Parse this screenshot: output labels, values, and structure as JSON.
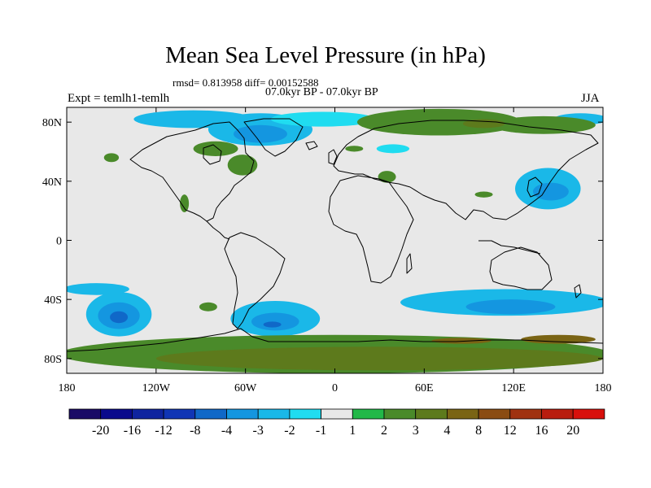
{
  "chart_data": {
    "type": "heatmap",
    "title": "Mean Sea Level Pressure (in hPa)",
    "stats_line": "rmsd= 0.813958 diff= 0.00152588",
    "period_line": "07.0kyr BP - 07.0kyr BP",
    "left_label": "Expt = temlh1-temlh",
    "right_label": "JJA",
    "projection": "cylindrical equidistant, global",
    "x_ticks": [
      {
        "value": -180,
        "label": "180"
      },
      {
        "value": -120,
        "label": "120W"
      },
      {
        "value": -60,
        "label": "60W"
      },
      {
        "value": 0,
        "label": "0"
      },
      {
        "value": 60,
        "label": "60E"
      },
      {
        "value": 120,
        "label": "120E"
      },
      {
        "value": 180,
        "label": "180"
      }
    ],
    "y_ticks": [
      {
        "value": 80,
        "label": "80N"
      },
      {
        "value": 40,
        "label": "40N"
      },
      {
        "value": 0,
        "label": "0"
      },
      {
        "value": -40,
        "label": "40S"
      },
      {
        "value": -80,
        "label": "80S"
      }
    ],
    "xlim": [
      -180,
      180
    ],
    "ylim": [
      -90,
      90
    ],
    "background_color": "#e8e8e8",
    "colorbar": {
      "colors": [
        "#1a0b66",
        "#0a0a8c",
        "#0f249f",
        "#1035b5",
        "#1068c8",
        "#1496e0",
        "#1ab8e8",
        "#20dcf0",
        "#e8e8e8",
        "#22b848",
        "#4a8a2a",
        "#5d7a1c",
        "#7a6414",
        "#8a4c12",
        "#a03210",
        "#b81c0e",
        "#d8100c"
      ],
      "boundaries": [
        "-20",
        "-16",
        "-12",
        "-8",
        "-4",
        "-3",
        "-2",
        "-1",
        "1",
        "2",
        "3",
        "4",
        "8",
        "12",
        "16",
        "20"
      ]
    },
    "contour_regions": [
      {
        "name": "arctic-canada-low",
        "level": "-2",
        "lon": -95,
        "lat": 82,
        "rlon": 40,
        "rlat": 6
      },
      {
        "name": "greenland-low",
        "level": "-2",
        "lon": -50,
        "lat": 75,
        "rlon": 35,
        "rlat": 11
      },
      {
        "name": "greenland-core",
        "level": "-3",
        "lon": -50,
        "lat": 72,
        "rlon": 18,
        "rlat": 6
      },
      {
        "name": "labrador-low",
        "level": "-1",
        "lon": -8,
        "lat": 82,
        "rlon": 35,
        "rlat": 5
      },
      {
        "name": "beaufort-low",
        "level": "-2",
        "lon": 165,
        "lat": 82,
        "rlon": 18,
        "rlat": 4
      },
      {
        "name": "siberia-high",
        "level": "2",
        "lon": 70,
        "lat": 80,
        "rlon": 55,
        "rlat": 9
      },
      {
        "name": "kara-high",
        "level": "2",
        "lon": 140,
        "lat": 78,
        "rlon": 35,
        "rlat": 6
      },
      {
        "name": "barents-core",
        "level": "3",
        "lon": 100,
        "lat": 79,
        "rlon": 14,
        "rlat": 3
      },
      {
        "name": "iceland-high",
        "level": "2",
        "lon": -80,
        "lat": 62,
        "rlon": 15,
        "rlat": 5
      },
      {
        "name": "pacific-nw-high",
        "level": "2",
        "lon": -150,
        "lat": 56,
        "rlon": 5,
        "rlat": 3
      },
      {
        "name": "hudson-high",
        "level": "2",
        "lon": -62,
        "lat": 51,
        "rlon": 10,
        "rlat": 7
      },
      {
        "name": "scandinavia-low",
        "level": "-1",
        "lon": 39,
        "lat": 62,
        "rlon": 11,
        "rlat": 3
      },
      {
        "name": "ural-high",
        "level": "2",
        "lon": 13,
        "lat": 62,
        "rlon": 6,
        "rlat": 2
      },
      {
        "name": "caspian-high",
        "level": "2",
        "lon": 35,
        "lat": 43,
        "rlon": 6,
        "rlat": 4
      },
      {
        "name": "mexico-high",
        "level": "2",
        "lon": -101,
        "lat": 25,
        "rlon": 3,
        "rlat": 6
      },
      {
        "name": "japan-low",
        "level": "-2",
        "lon": 143,
        "lat": 35,
        "rlon": 22,
        "rlat": 14
      },
      {
        "name": "japan-core",
        "level": "-3",
        "lon": 145,
        "lat": 33,
        "rlon": 12,
        "rlat": 6
      },
      {
        "name": "china-high",
        "level": "2",
        "lon": 100,
        "lat": 31,
        "rlon": 6,
        "rlat": 2
      },
      {
        "name": "south-ocean-low",
        "level": "-2",
        "lon": 114,
        "lat": -42,
        "rlon": 70,
        "rlat": 9
      },
      {
        "name": "south-ocean-core",
        "level": "-3",
        "lon": 118,
        "lat": -45,
        "rlon": 30,
        "rlat": 5
      },
      {
        "name": "pacific-sw-low",
        "level": "-2",
        "lon": -160,
        "lat": -33,
        "rlon": 22,
        "rlat": 4
      },
      {
        "name": "pacific-south-low",
        "level": "-2",
        "lon": -145,
        "lat": -50,
        "rlon": 22,
        "rlat": 15
      },
      {
        "name": "pacific-south-mid",
        "level": "-3",
        "lon": -145,
        "lat": -51,
        "rlon": 14,
        "rlat": 9
      },
      {
        "name": "pacific-south-core",
        "level": "-4",
        "lon": -145,
        "lat": -52,
        "rlon": 6,
        "rlat": 4
      },
      {
        "name": "atlantic-south-low",
        "level": "-2",
        "lon": -40,
        "lat": -53,
        "rlon": 30,
        "rlat": 12
      },
      {
        "name": "atlantic-south-mid",
        "level": "-3",
        "lon": -40,
        "lat": -55,
        "rlon": 16,
        "rlat": 6
      },
      {
        "name": "atlantic-south-core",
        "level": "-4",
        "lon": -42,
        "lat": -57,
        "rlon": 6,
        "rlat": 2
      },
      {
        "name": "south-pacific-high",
        "level": "2",
        "lon": -85,
        "lat": -45,
        "rlon": 6,
        "rlat": 3
      },
      {
        "name": "antarctic-ring",
        "level": "2",
        "lon": 0,
        "lat": -77,
        "rlon": 185,
        "rlat": 13
      },
      {
        "name": "antarctic-inner",
        "level": "3",
        "lon": 30,
        "lat": -80,
        "rlon": 150,
        "rlat": 8
      },
      {
        "name": "ross-core",
        "level": "4",
        "lon": 150,
        "lat": -67,
        "rlon": 25,
        "rlat": 3
      },
      {
        "name": "weddell-core",
        "level": "4",
        "lon": 85,
        "lat": -68,
        "rlon": 20,
        "rlat": 2
      }
    ]
  }
}
